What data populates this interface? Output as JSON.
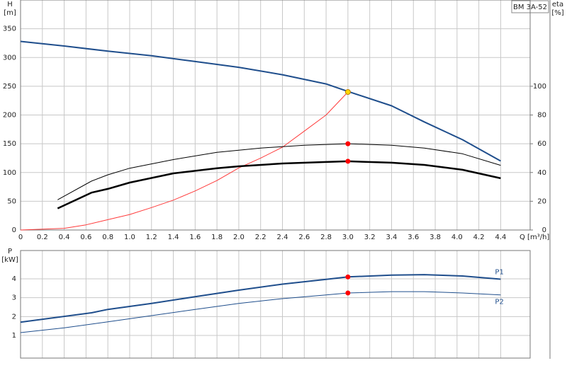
{
  "chart_data": [
    {
      "type": "line",
      "title": "BM 3A-52",
      "ylabel": "H",
      "yunit": "[m]",
      "y2label": "eta",
      "y2unit": "[%]",
      "xlabel": "Q [m³/h]",
      "xlim": [
        0,
        4.67
      ],
      "xticks": [
        0,
        0.2,
        0.4,
        0.6,
        0.8,
        {
          "value": 1,
          "label": "1.0"
        },
        1.2,
        1.4,
        1.6,
        1.8,
        {
          "value": 2,
          "label": "2.0"
        },
        2.2,
        2.4,
        2.6,
        2.8,
        {
          "value": 3,
          "label": "3.0"
        },
        3.2,
        3.4,
        3.6,
        3.8,
        {
          "value": 4,
          "label": "4.0"
        },
        4.2,
        4.4
      ],
      "ylim": [
        0,
        400
      ],
      "yticks": [
        0,
        50,
        100,
        150,
        200,
        250,
        300,
        350
      ],
      "y2lim": [
        0,
        160
      ],
      "y2ticks": [
        0,
        20,
        40,
        60,
        80,
        100
      ],
      "grid": true,
      "series": [
        {
          "color": "#1f4e8c",
          "line_width": 2,
          "x": [
            0,
            0.4,
            0.8,
            1.2,
            1.6,
            2.0,
            2.4,
            2.8,
            3.0,
            3.4,
            3.7,
            4.05,
            4.4
          ],
          "values": [
            328,
            320,
            311,
            303,
            293,
            283,
            270,
            254,
            241,
            216,
            188,
            157,
            120
          ]
        },
        {
          "color": "#ff3b3b",
          "line_width": 1,
          "x": [
            0,
            0.4,
            0.6,
            0.8,
            1.0,
            1.2,
            1.4,
            1.6,
            1.8,
            2.0,
            2.2,
            2.4,
            2.6,
            2.8,
            3.0
          ],
          "values": [
            0,
            3,
            9,
            18,
            27,
            39,
            52,
            68,
            86,
            108,
            125,
            144,
            172,
            200,
            240
          ]
        },
        {
          "color": "#000000",
          "line_width": 1,
          "axis": "y2",
          "x": [
            0.34,
            0.65,
            0.8,
            1.0,
            1.4,
            1.8,
            2.2,
            2.6,
            3.0,
            3.4,
            3.7,
            4.05,
            4.4
          ],
          "values": [
            21,
            34,
            38.4,
            43,
            49,
            54,
            57,
            59,
            60,
            59,
            57,
            53,
            45
          ]
        },
        {
          "color": "#000000",
          "line_width": 2.5,
          "axis": "y2",
          "x": [
            0.34,
            0.65,
            0.8,
            1.0,
            1.4,
            1.8,
            2.0,
            2.4,
            2.8,
            3.0,
            3.4,
            3.7,
            4.05,
            4.4
          ],
          "values": [
            15,
            26,
            28.6,
            33,
            39.4,
            43,
            44.3,
            46.3,
            47.3,
            47.8,
            46.8,
            45.3,
            41.9,
            36
          ]
        }
      ],
      "markers": [
        {
          "x": 3.0,
          "y": 240,
          "color": "#ffd700"
        },
        {
          "x": 3.0,
          "y": 60,
          "axis": "y2",
          "color": "#ff0000"
        },
        {
          "x": 3.0,
          "y": 47.8,
          "axis": "y2",
          "color": "#ff0000"
        }
      ]
    },
    {
      "type": "line",
      "ylabel": "P",
      "yunit": "[kW]",
      "xlim": [
        0,
        4.67
      ],
      "ylim": [
        -0.2,
        5.5
      ],
      "yticks": [
        1,
        2,
        3,
        4
      ],
      "grid": true,
      "series": [
        {
          "name": "P1",
          "color": "#1f4e8c",
          "line_width": 2,
          "x": [
            0,
            0.65,
            0.8,
            1.2,
            1.6,
            2.0,
            2.4,
            2.8,
            3.0,
            3.4,
            3.7,
            4.05,
            4.4
          ],
          "values": [
            1.7,
            2.2,
            2.38,
            2.7,
            3.05,
            3.4,
            3.72,
            3.97,
            4.1,
            4.2,
            4.22,
            4.15,
            3.98
          ]
        },
        {
          "name": "P2",
          "color": "#1f4e8c",
          "line_width": 1,
          "x": [
            0,
            0.4,
            0.8,
            1.2,
            1.6,
            2.0,
            2.4,
            2.8,
            3.0,
            3.4,
            3.7,
            4.05,
            4.4
          ],
          "values": [
            1.15,
            1.4,
            1.72,
            2.05,
            2.38,
            2.7,
            2.95,
            3.15,
            3.25,
            3.32,
            3.32,
            3.25,
            3.15
          ]
        }
      ],
      "markers": [
        {
          "x": 3.0,
          "y": 4.1,
          "color": "#ff0000"
        },
        {
          "x": 3.0,
          "y": 3.25,
          "color": "#ff0000"
        }
      ]
    }
  ]
}
